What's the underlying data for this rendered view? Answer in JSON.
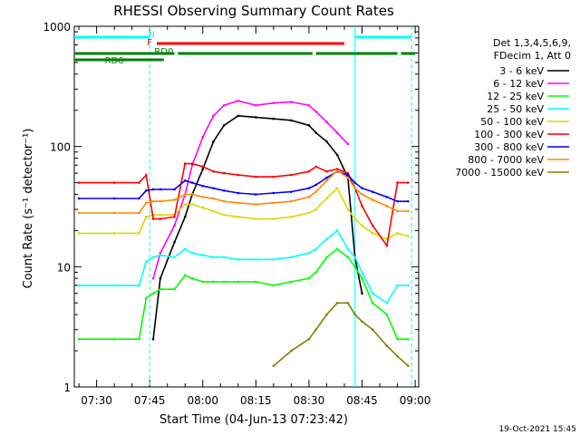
{
  "chart_data": {
    "type": "line",
    "title": "RHESSI Observing Summary Count Rates",
    "xlabel": "Start Time (04-Jun-13 07:23:42)",
    "ylabel": "Count Rate (s⁻¹ detector⁻¹)",
    "yscale": "log",
    "ylim": [
      1,
      1000
    ],
    "xlim": [
      "07:23:42",
      "09:01:00"
    ],
    "x_tick_labels": [
      "07:30",
      "07:45",
      "08:00",
      "08:15",
      "08:30",
      "08:45",
      "09:00"
    ],
    "y_tick_labels": [
      "1",
      "10",
      "100",
      "1000"
    ],
    "legend_position": "right",
    "legend_header": [
      "Det 1,3,4,5,6,9,",
      "FDecim 1, Att 0"
    ],
    "timestamp": "19-Oct-2021 15:45",
    "annotations": {
      "N": "N",
      "F": "F",
      "RD0": "RD0",
      "RD6": "RD6"
    },
    "x": [
      "07:25",
      "07:35",
      "07:42",
      "07:44",
      "07:46",
      "07:48",
      "07:52",
      "07:55",
      "07:57",
      "08:00",
      "08:03",
      "08:06",
      "08:10",
      "08:15",
      "08:20",
      "08:25",
      "08:30",
      "08:32",
      "08:35",
      "08:38",
      "08:41",
      "08:43",
      "08:45",
      "08:48",
      "08:52",
      "08:55",
      "08:58"
    ],
    "series": [
      {
        "name": "3 - 6 keV",
        "color": "#000000",
        "values": [
          null,
          null,
          null,
          null,
          2.5,
          8,
          16,
          26,
          40,
          65,
          110,
          150,
          180,
          175,
          170,
          165,
          150,
          130,
          110,
          85,
          55,
          12,
          6,
          null,
          null,
          null,
          null
        ]
      },
      {
        "name": "6 - 12 keV",
        "color": "#ff00ff",
        "values": [
          null,
          null,
          null,
          null,
          8,
          13,
          22,
          40,
          70,
          120,
          180,
          220,
          240,
          220,
          230,
          235,
          220,
          195,
          160,
          130,
          105,
          null,
          null,
          null,
          null,
          null,
          null
        ]
      },
      {
        "name": "12 - 25 keV",
        "color": "#00ff00",
        "values": [
          2.5,
          2.5,
          2.5,
          5.5,
          6,
          6.5,
          6.5,
          8.5,
          8,
          7.5,
          7.5,
          7.5,
          7.5,
          7.5,
          7,
          7.5,
          8,
          9,
          12,
          14,
          12,
          10,
          8,
          5,
          4,
          2.5,
          2.5
        ]
      },
      {
        "name": "25 - 50 keV",
        "color": "#00ffff",
        "values": [
          7,
          7,
          7,
          11,
          12,
          12.5,
          12,
          14,
          13,
          12.5,
          12,
          12,
          11.5,
          11.5,
          11.5,
          12,
          13,
          14,
          17,
          20,
          14,
          12,
          9,
          6,
          5,
          7,
          7
        ]
      },
      {
        "name": "50 - 100 keV",
        "color": "#d8d800",
        "values": [
          19,
          19,
          19,
          26,
          27,
          27,
          27,
          33,
          33,
          31,
          29,
          27,
          26,
          25,
          25,
          26,
          28,
          30,
          37,
          45,
          30,
          25,
          22,
          19,
          17,
          19,
          18
        ]
      },
      {
        "name": "100 - 300 keV",
        "color": "#ff0000",
        "values": [
          50,
          50,
          50,
          58,
          25,
          25,
          26,
          72,
          72,
          68,
          62,
          60,
          58,
          56,
          56,
          58,
          62,
          68,
          62,
          65,
          60,
          45,
          32,
          22,
          15,
          50,
          50
        ]
      },
      {
        "name": "300 - 800 keV",
        "color": "#0000ff",
        "values": [
          37,
          37,
          37,
          43,
          44,
          44,
          44,
          52,
          50,
          47,
          45,
          43,
          41,
          40,
          41,
          42,
          45,
          48,
          55,
          62,
          58,
          50,
          45,
          42,
          38,
          35,
          35
        ]
      },
      {
        "name": "800 - 7000 keV",
        "color": "#ff8800",
        "values": [
          28,
          28,
          28,
          34,
          35,
          35,
          36,
          40,
          40,
          38,
          37,
          35,
          34,
          33,
          34,
          35,
          38,
          42,
          52,
          63,
          55,
          45,
          40,
          36,
          32,
          29,
          29
        ]
      },
      {
        "name": "7000 - 15000 keV",
        "color": "#808000",
        "values": [
          null,
          null,
          null,
          null,
          null,
          null,
          null,
          null,
          null,
          null,
          null,
          null,
          null,
          null,
          1.5,
          2.0,
          2.5,
          3.0,
          4.0,
          5.0,
          5.0,
          4.0,
          3.5,
          3.0,
          2.2,
          1.8,
          1.5
        ]
      }
    ],
    "status_bars": [
      {
        "label": "N",
        "color": "#00ffff",
        "segments": [
          [
            "07:23:42",
            "07:45"
          ],
          [
            "08:43",
            "08:59"
          ]
        ]
      },
      {
        "label": "F",
        "color": "#ff0000",
        "segments": [
          [
            "07:47",
            "08:40"
          ]
        ]
      },
      {
        "label": "RD0",
        "color": "#008000",
        "segments": [
          [
            "07:23:42",
            "07:52"
          ],
          [
            "07:53",
            "08:31"
          ],
          [
            "08:32",
            "08:55"
          ],
          [
            "08:56",
            "09:00"
          ]
        ]
      }
    ],
    "vertical_markers": [
      {
        "color": "#00ffff",
        "style": "dashed",
        "x": "07:45"
      },
      {
        "color": "#00ffff",
        "style": "solid",
        "x": "08:43"
      },
      {
        "color": "#00ffff",
        "style": "dashed",
        "x": "08:59"
      }
    ]
  }
}
